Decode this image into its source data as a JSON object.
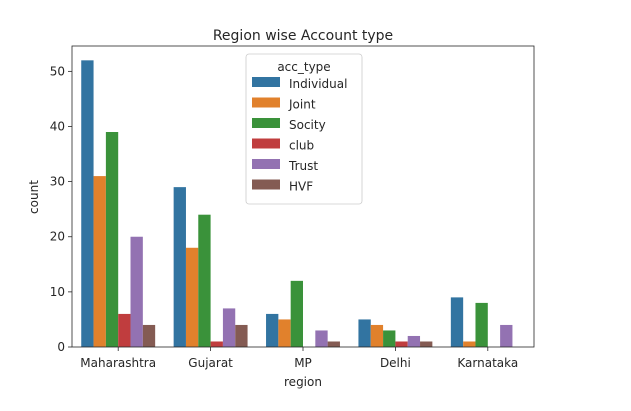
{
  "chart_data": {
    "type": "bar",
    "title": "Region wise Account type",
    "xlabel": "region",
    "ylabel": "count",
    "categories": [
      "Maharashtra",
      "Gujarat",
      "MP",
      "Delhi",
      "Karnataka"
    ],
    "ylim": [
      0,
      54.6
    ],
    "yticks": [
      0,
      10,
      20,
      30,
      40,
      50
    ],
    "grid": false,
    "legend": {
      "title": "acc_type",
      "placement": "top-center"
    },
    "series": [
      {
        "name": "Individual",
        "color": "#3274a1",
        "values": [
          52,
          29,
          6,
          5,
          9
        ]
      },
      {
        "name": "Joint",
        "color": "#e1812c",
        "values": [
          31,
          18,
          5,
          4,
          1
        ]
      },
      {
        "name": "Socity",
        "color": "#3a923a",
        "values": [
          39,
          24,
          12,
          3,
          8
        ]
      },
      {
        "name": "club",
        "color": "#c03d3e",
        "values": [
          6,
          1,
          0,
          1,
          0
        ]
      },
      {
        "name": "Trust",
        "color": "#9372b2",
        "values": [
          20,
          7,
          3,
          2,
          4
        ]
      },
      {
        "name": "HVF",
        "color": "#845b53",
        "values": [
          4,
          4,
          1,
          1,
          0
        ]
      }
    ]
  }
}
